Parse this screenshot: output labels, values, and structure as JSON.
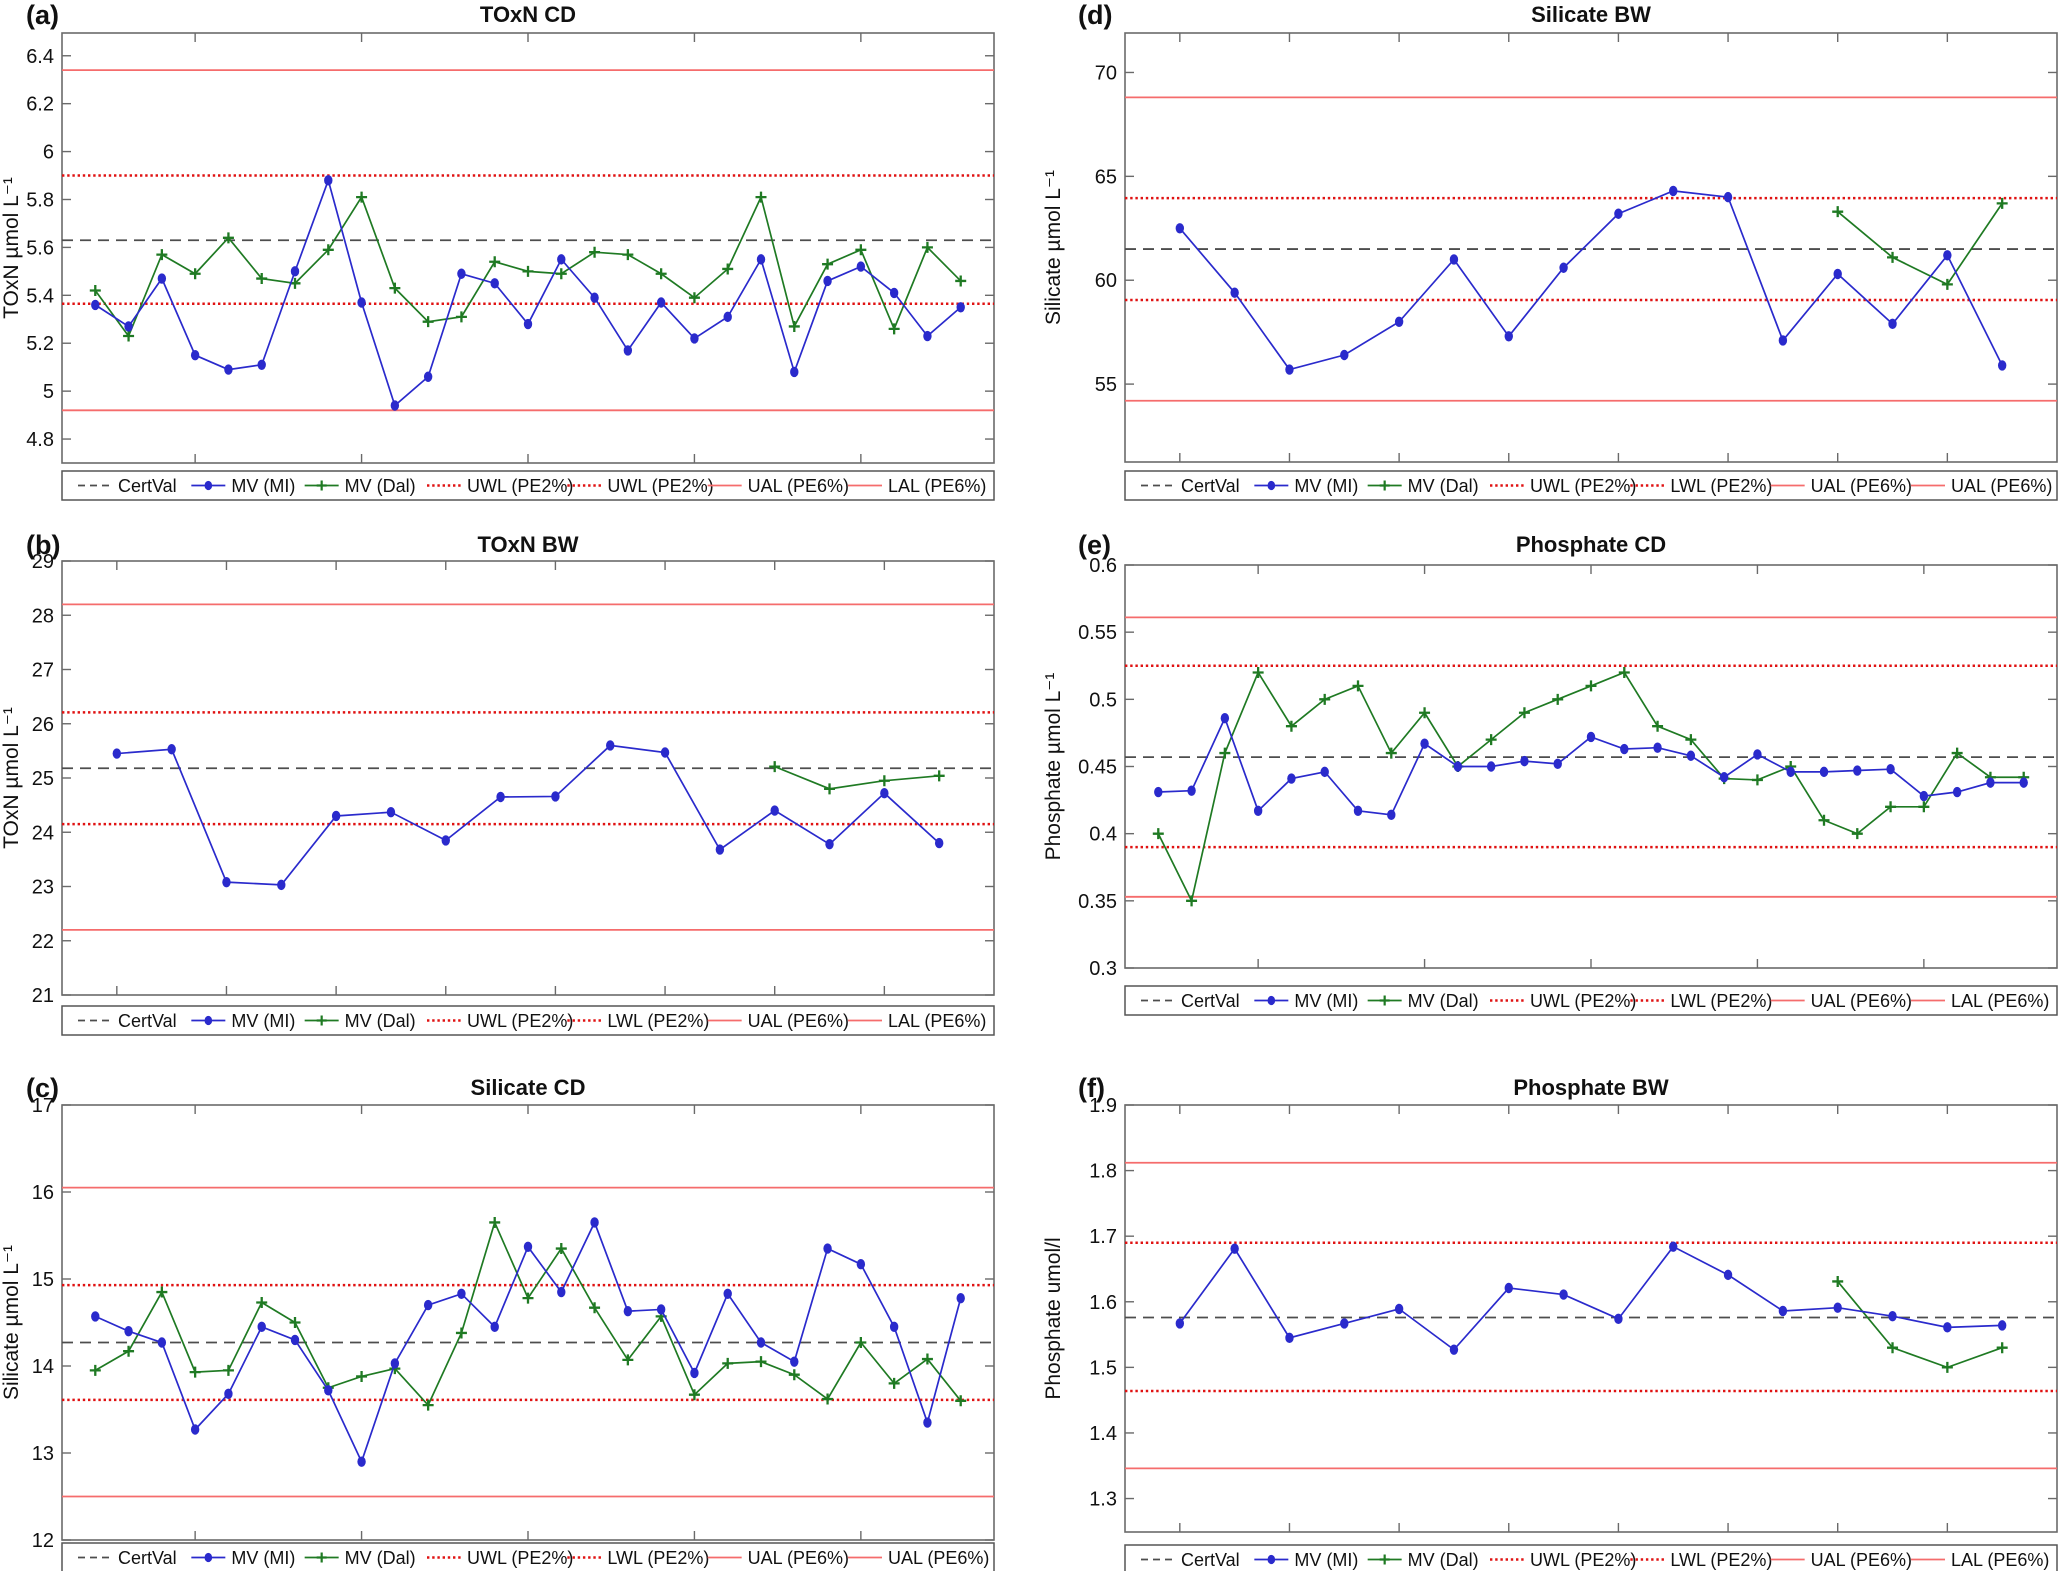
{
  "figure": {
    "background": "#ffffff"
  },
  "colors": {
    "mi": "#2a2acc",
    "dal": "#1f7a23",
    "dotted_warn": "#e01212",
    "solid_action": "#f56c6c",
    "certval": "#4d4d4d",
    "axis": "#6a6a6a",
    "text": "#111111"
  },
  "chart_data": [
    {
      "id": "a",
      "panel_label": "(a)",
      "type": "line",
      "title": "TOxN CD",
      "ylabel": "TOxN µmol L⁻¹",
      "ylim": [
        4.7,
        6.495
      ],
      "yticks": [
        4.8,
        5,
        5.2,
        5.4,
        5.6,
        5.8,
        6,
        6.2,
        6.4
      ],
      "xlim": [
        0,
        28
      ],
      "xticks": [
        4,
        9,
        14,
        19,
        24
      ],
      "x": [
        1,
        2,
        3,
        4,
        5,
        6,
        7,
        8,
        9,
        10,
        11,
        12,
        13,
        14,
        15,
        16,
        17,
        18,
        19,
        20,
        21,
        22,
        23,
        24,
        25,
        26,
        27
      ],
      "series": [
        {
          "name": "MV (MI)",
          "marker": "circle",
          "color_key": "mi",
          "values": [
            5.36,
            5.27,
            5.47,
            5.15,
            5.09,
            5.11,
            5.5,
            5.88,
            5.37,
            4.94,
            5.06,
            5.49,
            5.45,
            5.28,
            5.55,
            5.39,
            5.17,
            5.37,
            5.22,
            5.31,
            5.55,
            5.08,
            5.46,
            5.52,
            5.41,
            5.23,
            5.35
          ]
        },
        {
          "name": "MV (Dal)",
          "marker": "plus",
          "color_key": "dal",
          "values": [
            5.42,
            5.23,
            5.57,
            5.49,
            5.64,
            5.47,
            5.45,
            5.59,
            5.81,
            5.43,
            5.29,
            5.31,
            5.54,
            5.5,
            5.49,
            5.58,
            5.57,
            5.49,
            5.39,
            5.51,
            5.81,
            5.27,
            5.53,
            5.59,
            5.26,
            5.6,
            5.46
          ]
        }
      ],
      "ref_lines": [
        {
          "label": "UAL (PE6%)",
          "value": 6.34,
          "style": "solid"
        },
        {
          "label": "UWL (PE2%)",
          "value": 5.9,
          "style": "dotted"
        },
        {
          "label": "CertVal",
          "value": 5.63,
          "style": "dashed"
        },
        {
          "label": "UWL (PE2%)",
          "value": 5.365,
          "style": "dotted"
        },
        {
          "label": "LAL (PE6%)",
          "value": 4.92,
          "style": "solid"
        }
      ],
      "legend": [
        {
          "label": "CertVal",
          "swatch": "certval"
        },
        {
          "label": "MV (MI)",
          "swatch": "mi"
        },
        {
          "label": "MV (Dal)",
          "swatch": "dal"
        },
        {
          "label": "UWL (PE2%)",
          "swatch": "dotted"
        },
        {
          "label": "UWL (PE2%)",
          "swatch": "dotted"
        },
        {
          "label": "UAL (PE6%)",
          "swatch": "solid"
        },
        {
          "label": "LAL (PE6%)",
          "swatch": "solid"
        }
      ]
    },
    {
      "id": "d",
      "panel_label": "(d)",
      "type": "line",
      "title": "Silicate BW",
      "ylabel": "Silicate µmol L⁻¹",
      "ylim": [
        51.25,
        71.9
      ],
      "yticks": [
        55,
        60,
        65,
        70
      ],
      "xlim": [
        0,
        17
      ],
      "xticks": [
        1,
        3,
        5,
        7,
        9,
        11,
        13,
        15
      ],
      "x": [
        1,
        2,
        3,
        4,
        5,
        6,
        7,
        8,
        9,
        10,
        11,
        12,
        13,
        14,
        15,
        16
      ],
      "series": [
        {
          "name": "MV (MI)",
          "marker": "circle",
          "color_key": "mi",
          "values": [
            62.5,
            59.4,
            55.7,
            56.4,
            58.0,
            61.0,
            57.3,
            60.6,
            63.2,
            64.3,
            64.0,
            57.1,
            60.3,
            57.9,
            61.2,
            55.9
          ]
        },
        {
          "name": "MV (Dal)",
          "marker": "plus",
          "color_key": "dal",
          "values": [
            null,
            null,
            null,
            null,
            null,
            null,
            null,
            null,
            null,
            null,
            null,
            null,
            63.3,
            61.1,
            59.8,
            63.7
          ]
        }
      ],
      "ref_lines": [
        {
          "label": "UAL (PE6%)",
          "value": 68.8,
          "style": "solid"
        },
        {
          "label": "UWL (PE2%)",
          "value": 63.95,
          "style": "dotted"
        },
        {
          "label": "CertVal",
          "value": 61.5,
          "style": "dashed"
        },
        {
          "label": "LWL (PE2%)",
          "value": 59.05,
          "style": "dotted"
        },
        {
          "label": "UAL (PE6%)",
          "value": 54.2,
          "style": "solid"
        }
      ],
      "legend": [
        {
          "label": "CertVal",
          "swatch": "certval"
        },
        {
          "label": "MV (MI)",
          "swatch": "mi"
        },
        {
          "label": "MV (Dal)",
          "swatch": "dal"
        },
        {
          "label": "UWL (PE2%)",
          "swatch": "dotted"
        },
        {
          "label": "LWL (PE2%)",
          "swatch": "dotted"
        },
        {
          "label": "UAL (PE6%)",
          "swatch": "solid"
        },
        {
          "label": "UAL (PE6%)",
          "swatch": "solid"
        }
      ]
    },
    {
      "id": "b",
      "panel_label": "(b)",
      "type": "line",
      "title": "TOxN BW",
      "ylabel": "TOxN µmol L⁻¹",
      "ylim": [
        21,
        29
      ],
      "yticks": [
        21,
        22,
        23,
        24,
        25,
        26,
        27,
        28,
        29
      ],
      "xlim": [
        0,
        17
      ],
      "xticks": [
        1,
        3,
        5,
        7,
        9,
        11,
        13,
        15
      ],
      "x": [
        1,
        2,
        3,
        4,
        5,
        6,
        7,
        8,
        9,
        10,
        11,
        12,
        13,
        14,
        15,
        16
      ],
      "series": [
        {
          "name": "MV (MI)",
          "marker": "circle",
          "color_key": "mi",
          "values": [
            25.45,
            25.53,
            23.08,
            23.03,
            24.3,
            24.37,
            23.85,
            24.65,
            24.66,
            25.6,
            25.47,
            23.68,
            24.4,
            23.78,
            24.72,
            23.8
          ]
        },
        {
          "name": "MV (Dal)",
          "marker": "plus",
          "color_key": "dal",
          "values": [
            null,
            null,
            null,
            null,
            null,
            null,
            null,
            null,
            null,
            null,
            null,
            null,
            25.21,
            24.8,
            24.95,
            25.04
          ]
        }
      ],
      "ref_lines": [
        {
          "label": "UAL (PE6%)",
          "value": 28.2,
          "style": "solid"
        },
        {
          "label": "UWL (PE2%)",
          "value": 26.21,
          "style": "dotted"
        },
        {
          "label": "CertVal",
          "value": 25.18,
          "style": "dashed"
        },
        {
          "label": "LWL (PE2%)",
          "value": 24.15,
          "style": "dotted"
        },
        {
          "label": "LAL (PE6%)",
          "value": 22.2,
          "style": "solid"
        }
      ],
      "legend": [
        {
          "label": "CertVal",
          "swatch": "certval"
        },
        {
          "label": "MV (MI)",
          "swatch": "mi"
        },
        {
          "label": "MV (Dal)",
          "swatch": "dal"
        },
        {
          "label": "UWL (PE2%)",
          "swatch": "dotted"
        },
        {
          "label": "LWL (PE2%)",
          "swatch": "dotted"
        },
        {
          "label": "UAL (PE6%)",
          "swatch": "solid"
        },
        {
          "label": "LAL (PE6%)",
          "swatch": "solid"
        }
      ]
    },
    {
      "id": "e",
      "panel_label": "(e)",
      "type": "line",
      "title": "Phosphate CD",
      "ylabel": "Phosphate µmol L⁻¹",
      "ylim": [
        0.3,
        0.6
      ],
      "yticks": [
        0.3,
        0.35,
        0.4,
        0.45,
        0.5,
        0.55,
        0.6
      ],
      "xlim": [
        0,
        28
      ],
      "xticks": [
        4,
        9,
        14,
        19,
        24
      ],
      "x": [
        1,
        2,
        3,
        4,
        5,
        6,
        7,
        8,
        9,
        10,
        11,
        12,
        13,
        14,
        15,
        16,
        17,
        18,
        19,
        20,
        21,
        22,
        23,
        24,
        25,
        26,
        27
      ],
      "series": [
        {
          "name": "MV (MI)",
          "marker": "circle",
          "color_key": "mi",
          "values": [
            0.431,
            0.432,
            0.486,
            0.417,
            0.441,
            0.446,
            0.417,
            0.414,
            0.467,
            0.45,
            0.45,
            0.454,
            0.452,
            0.472,
            0.463,
            0.464,
            0.458,
            0.442,
            0.459,
            0.446,
            0.446,
            0.447,
            0.448,
            0.428,
            0.431,
            0.438,
            0.438
          ]
        },
        {
          "name": "MV (Dal)",
          "marker": "plus",
          "color_key": "dal",
          "values": [
            0.4,
            0.35,
            0.46,
            0.52,
            0.48,
            0.5,
            0.51,
            0.46,
            0.49,
            0.45,
            0.47,
            0.49,
            0.5,
            0.51,
            0.52,
            0.48,
            0.47,
            0.441,
            0.44,
            0.45,
            0.41,
            0.4,
            0.42,
            0.42,
            0.46,
            0.442,
            0.442
          ]
        }
      ],
      "ref_lines": [
        {
          "label": "UAL (PE6%)",
          "value": 0.561,
          "style": "solid"
        },
        {
          "label": "UWL (PE2%)",
          "value": 0.525,
          "style": "dotted"
        },
        {
          "label": "CertVal",
          "value": 0.457,
          "style": "dashed"
        },
        {
          "label": "LWL (PE2%)",
          "value": 0.39,
          "style": "dotted"
        },
        {
          "label": "LAL (PE6%)",
          "value": 0.353,
          "style": "solid"
        }
      ],
      "legend": [
        {
          "label": "CertVal",
          "swatch": "certval"
        },
        {
          "label": "MV (MI)",
          "swatch": "mi"
        },
        {
          "label": "MV (Dal)",
          "swatch": "dal"
        },
        {
          "label": "UWL (PE2%)",
          "swatch": "dotted"
        },
        {
          "label": "LWL (PE2%)",
          "swatch": "dotted"
        },
        {
          "label": "UAL (PE6%)",
          "swatch": "solid"
        },
        {
          "label": "LAL (PE6%)",
          "swatch": "solid"
        }
      ]
    },
    {
      "id": "c",
      "panel_label": "(c)",
      "type": "line",
      "title": "Silicate CD",
      "ylabel": "Silicate µmol L⁻¹",
      "ylim": [
        12,
        17
      ],
      "yticks": [
        12,
        13,
        14,
        15,
        16,
        17
      ],
      "xlim": [
        0,
        28
      ],
      "xticks": [
        4,
        9,
        14,
        19,
        24
      ],
      "x": [
        1,
        2,
        3,
        4,
        5,
        6,
        7,
        8,
        9,
        10,
        11,
        12,
        13,
        14,
        15,
        16,
        17,
        18,
        19,
        20,
        21,
        22,
        23,
        24,
        25,
        26,
        27
      ],
      "series": [
        {
          "name": "MV (MI)",
          "marker": "circle",
          "color_key": "mi",
          "values": [
            14.57,
            14.4,
            14.27,
            13.27,
            13.68,
            14.45,
            14.3,
            13.72,
            12.9,
            14.03,
            14.7,
            14.83,
            14.45,
            15.37,
            14.85,
            15.65,
            14.63,
            14.65,
            13.92,
            14.83,
            14.27,
            14.05,
            15.35,
            15.17,
            14.45,
            13.35,
            14.78
          ]
        },
        {
          "name": "MV (Dal)",
          "marker": "plus",
          "color_key": "dal",
          "values": [
            13.95,
            14.17,
            14.85,
            13.93,
            13.95,
            14.73,
            14.5,
            13.75,
            13.88,
            13.97,
            13.55,
            14.38,
            15.65,
            14.78,
            15.35,
            14.67,
            14.07,
            14.57,
            13.67,
            14.03,
            14.05,
            13.9,
            13.62,
            14.27,
            13.8,
            14.08,
            13.6
          ]
        }
      ],
      "ref_lines": [
        {
          "label": "UAL (PE6%)",
          "value": 16.05,
          "style": "solid"
        },
        {
          "label": "UWL (PE2%)",
          "value": 14.93,
          "style": "dotted"
        },
        {
          "label": "CertVal",
          "value": 14.27,
          "style": "dashed"
        },
        {
          "label": "LWL (PE2%)",
          "value": 13.61,
          "style": "dotted"
        },
        {
          "label": "UAL (PE6%)",
          "value": 12.5,
          "style": "solid"
        }
      ],
      "legend": [
        {
          "label": "CertVal",
          "swatch": "certval"
        },
        {
          "label": "MV (MI)",
          "swatch": "mi"
        },
        {
          "label": "MV (Dal)",
          "swatch": "dal"
        },
        {
          "label": "UWL (PE2%)",
          "swatch": "dotted"
        },
        {
          "label": "LWL (PE2%)",
          "swatch": "dotted"
        },
        {
          "label": "UAL (PE6%)",
          "swatch": "solid"
        },
        {
          "label": "UAL (PE6%)",
          "swatch": "solid"
        }
      ]
    },
    {
      "id": "f",
      "panel_label": "(f)",
      "type": "line",
      "title": "Phosphate BW",
      "ylabel": "Phosphate umol/l",
      "ylim": [
        1.249,
        1.9
      ],
      "yticks": [
        1.3,
        1.4,
        1.5,
        1.6,
        1.7,
        1.8,
        1.9
      ],
      "xlim": [
        0,
        17
      ],
      "xticks": [
        1,
        3,
        5,
        7,
        9,
        11,
        13,
        15
      ],
      "x": [
        1,
        2,
        3,
        4,
        5,
        6,
        7,
        8,
        9,
        10,
        11,
        12,
        13,
        14,
        15,
        16
      ],
      "series": [
        {
          "name": "MV (MI)",
          "marker": "circle",
          "color_key": "mi",
          "values": [
            1.567,
            1.681,
            1.545,
            1.567,
            1.589,
            1.527,
            1.621,
            1.611,
            1.574,
            1.684,
            1.641,
            1.586,
            1.591,
            1.578,
            1.561,
            1.564
          ]
        },
        {
          "name": "MV (Dal)",
          "marker": "plus",
          "color_key": "dal",
          "values": [
            null,
            null,
            null,
            null,
            null,
            null,
            null,
            null,
            null,
            null,
            null,
            null,
            1.631,
            1.53,
            1.5,
            1.53
          ]
        }
      ],
      "ref_lines": [
        {
          "label": "UAL (PE6%)",
          "value": 1.812,
          "style": "solid"
        },
        {
          "label": "UWL (PE2%)",
          "value": 1.69,
          "style": "dotted"
        },
        {
          "label": "CertVal",
          "value": 1.576,
          "style": "dashed"
        },
        {
          "label": "LWL (PE2%)",
          "value": 1.464,
          "style": "dotted"
        },
        {
          "label": "LAL (PE6%)",
          "value": 1.346,
          "style": "solid"
        }
      ],
      "legend": [
        {
          "label": "CertVal",
          "swatch": "certval"
        },
        {
          "label": "MV (MI)",
          "swatch": "mi"
        },
        {
          "label": "MV (Dal)",
          "swatch": "dal"
        },
        {
          "label": "UWL (PE2%)",
          "swatch": "dotted"
        },
        {
          "label": "LWL (PE2%)",
          "swatch": "dotted"
        },
        {
          "label": "UAL (PE6%)",
          "swatch": "solid"
        },
        {
          "label": "LAL (PE6%)",
          "swatch": "solid"
        }
      ]
    }
  ]
}
